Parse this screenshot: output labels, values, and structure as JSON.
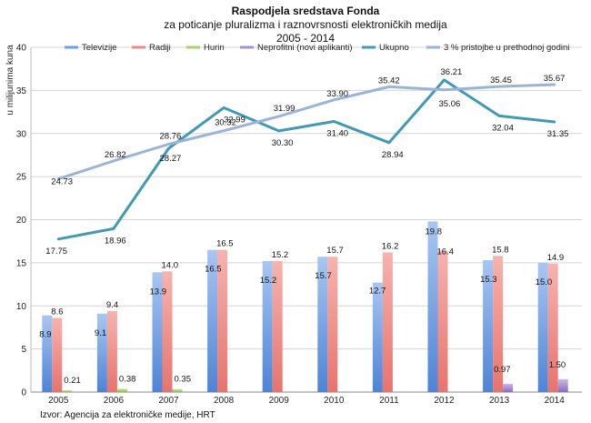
{
  "chart_data": {
    "type": "bar",
    "title": "Raspodjela sredstava Fonda",
    "subtitle_lines": [
      "za poticanje pluralizma i raznovrsnosti elektroničkih medija",
      "2005 - 2014"
    ],
    "ylabel": "u milijunima kuna",
    "xlabel": "",
    "ylim": [
      0,
      40
    ],
    "yticks": [
      0,
      5,
      10,
      15,
      20,
      25,
      30,
      35,
      40
    ],
    "grid": true,
    "legend_position": "top",
    "categories": [
      "2005",
      "2006",
      "2007",
      "2008",
      "2009",
      "2010",
      "2011",
      "2012",
      "2013",
      "2014"
    ],
    "series": [
      {
        "name": "Televizije",
        "kind": "bar",
        "color": "#6f9fe0",
        "values": [
          8.9,
          9.1,
          13.9,
          16.5,
          15.2,
          15.7,
          12.7,
          19.8,
          15.3,
          15.0
        ],
        "labels": [
          "8.9",
          "9.1",
          "13.9",
          "16.5",
          "15.2",
          "15.7",
          "12.7",
          "19.8",
          "15.3",
          "15.0"
        ]
      },
      {
        "name": "Radiji",
        "kind": "bar",
        "color": "#f08a86",
        "values": [
          8.6,
          9.4,
          14.0,
          16.5,
          15.2,
          15.7,
          16.2,
          16.4,
          15.8,
          14.9
        ],
        "labels": [
          "8.6",
          "9.4",
          "14.0",
          "16.5",
          "15.2",
          "15.7",
          "16.2",
          "16.4",
          "15.8",
          "14.9"
        ]
      },
      {
        "name": "Hurin",
        "kind": "bar",
        "color": "#a6d46a",
        "values": [
          0.21,
          0.38,
          0.35,
          null,
          null,
          null,
          null,
          null,
          null,
          null
        ],
        "labels": [
          "0.21",
          "0.38",
          "0.35",
          "",
          "",
          "",
          "",
          "",
          "",
          ""
        ]
      },
      {
        "name": "Neprofitni (novi aplikanti)",
        "kind": "bar",
        "color": "#a98fd0",
        "values": [
          null,
          null,
          null,
          null,
          null,
          null,
          null,
          null,
          0.97,
          1.5
        ],
        "labels": [
          "",
          "",
          "",
          "",
          "",
          "",
          "",
          "",
          "0.97",
          "1.50"
        ]
      },
      {
        "name": "Ukupno",
        "kind": "line",
        "color": "#3f9ab2",
        "values": [
          17.75,
          18.96,
          28.27,
          32.99,
          30.3,
          31.4,
          28.94,
          36.21,
          32.04,
          31.35
        ],
        "labels": [
          "17.75",
          "18.96",
          "28.27",
          "32.99",
          "30.30",
          "31.40",
          "28.94",
          "36.21",
          "32.04",
          "31.35"
        ]
      },
      {
        "name": "3 % pristojbe u prethodnoj godini",
        "kind": "line",
        "color": "#9bb3d6",
        "values": [
          24.73,
          26.82,
          28.76,
          30.32,
          31.99,
          33.9,
          35.42,
          35.06,
          35.45,
          35.67
        ],
        "labels": [
          "24.73",
          "26.82",
          "28.76",
          "30.32",
          "31.99",
          "33.90",
          "35.42",
          "35.06",
          "35.45",
          "35.67"
        ]
      }
    ],
    "source": "Izvor: Agencija za elektroničke medije, HRT"
  }
}
